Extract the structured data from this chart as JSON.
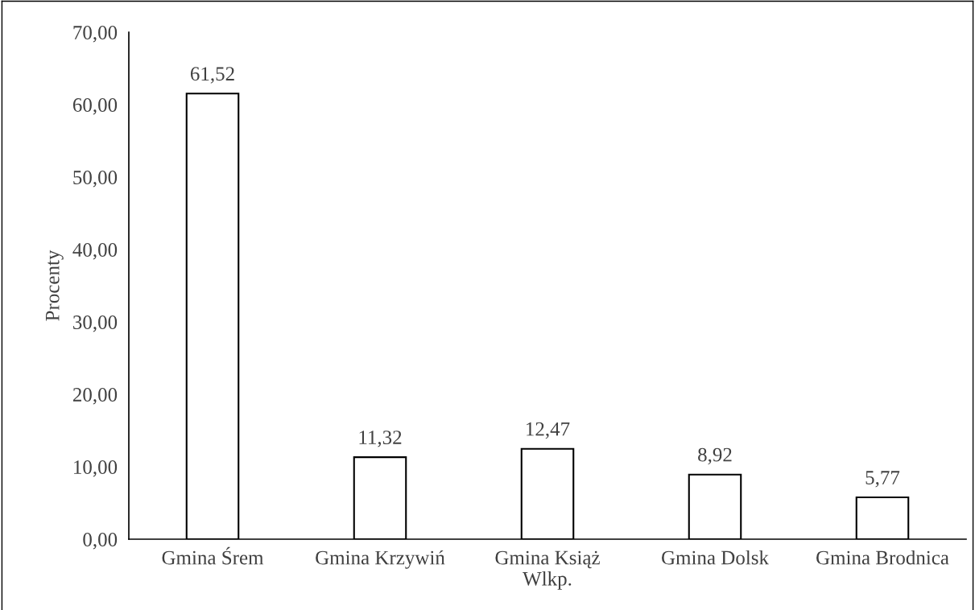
{
  "chart_data": {
    "type": "bar",
    "ylabel": "Procenty",
    "categories": [
      "Gmina Śrem",
      "Gmina Krzywiń",
      "Gmina Książ\nWlkp.",
      "Gmina Dolsk",
      "Gmina Brodnica"
    ],
    "values": [
      61.52,
      11.32,
      12.47,
      8.92,
      5.77
    ],
    "value_labels": [
      "61,52",
      "11,32",
      "12,47",
      "8,92",
      "5,77"
    ],
    "color": "#ffffff",
    "ylim": [
      0,
      70
    ],
    "yticks": [
      {
        "value": 0,
        "label": "0,00"
      },
      {
        "value": 10,
        "label": "10,00"
      },
      {
        "value": 20,
        "label": "20,00"
      },
      {
        "value": 30,
        "label": "30,00"
      },
      {
        "value": 40,
        "label": "40,00"
      },
      {
        "value": 50,
        "label": "50,00"
      },
      {
        "value": 60,
        "label": "60,00"
      },
      {
        "value": 70,
        "label": "70,00"
      }
    ],
    "grid": false,
    "legend": false
  }
}
